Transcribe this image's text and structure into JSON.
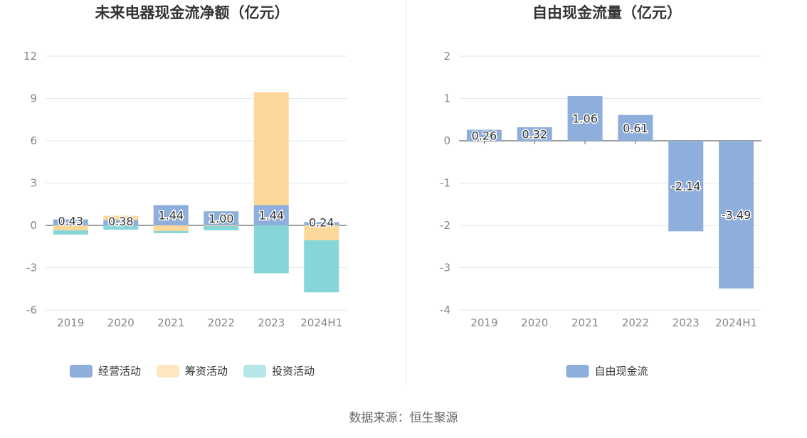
{
  "source_text": "数据来源：恒生聚源",
  "chart_data": [
    {
      "type": "bar",
      "stacked": true,
      "title": "未来电器现金流净额（亿元）",
      "categories": [
        "2019",
        "2020",
        "2021",
        "2022",
        "2023",
        "2024H1"
      ],
      "ylim": [
        -6,
        12
      ],
      "yticks": [
        -6,
        -3,
        0,
        3,
        6,
        9,
        12
      ],
      "grid": true,
      "legend": "bottom",
      "series": [
        {
          "name": "经营活动",
          "color": "#8EAEDB",
          "values": [
            0.43,
            0.38,
            1.44,
            1.0,
            1.44,
            0.24
          ],
          "labels": [
            "0.43",
            "0.38",
            "1.44",
            "1.00",
            "1.44",
            "0.24"
          ]
        },
        {
          "name": "筹资活动",
          "color": "#FDD89A",
          "values": [
            -0.35,
            0.3,
            -0.4,
            -0.05,
            8.0,
            -1.05
          ]
        },
        {
          "name": "投资活动",
          "color": "#86D6D8",
          "values": [
            -0.3,
            -0.3,
            -0.15,
            -0.3,
            -3.4,
            -3.7
          ]
        }
      ]
    },
    {
      "type": "bar",
      "title": "自由现金流量（亿元）",
      "categories": [
        "2019",
        "2020",
        "2021",
        "2022",
        "2023",
        "2024H1"
      ],
      "ylim": [
        -4,
        2
      ],
      "yticks": [
        -4,
        -3,
        -2,
        -1,
        0,
        1,
        2
      ],
      "grid": true,
      "legend": "bottom",
      "series": [
        {
          "name": "自由现金流",
          "color": "#8EAEDB",
          "values": [
            0.26,
            0.32,
            1.06,
            0.61,
            -2.14,
            -3.49
          ],
          "labels": [
            "0.26",
            "0.32",
            "1.06",
            "0.61",
            "-2.14",
            "-3.49"
          ]
        }
      ]
    }
  ]
}
